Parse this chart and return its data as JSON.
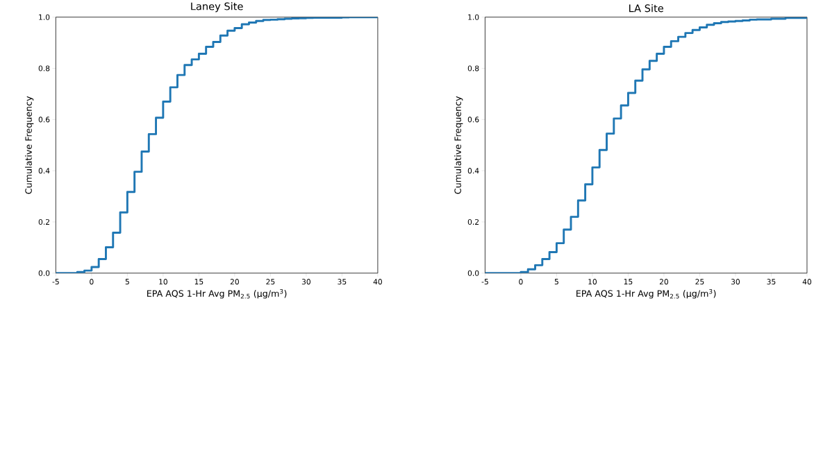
{
  "chart_data": [
    {
      "type": "step",
      "title": "Laney Site",
      "xlabel": "EPA AQS 1-Hr Avg PM$_{2.5}$ (µg/m$^{3}$)",
      "ylabel": "Cumulative Frequency",
      "x": [
        -5,
        -4,
        -3,
        -2,
        -1,
        0,
        1,
        2,
        3,
        4,
        5,
        6,
        7,
        8,
        9,
        10,
        11,
        12,
        13,
        14,
        15,
        16,
        17,
        18,
        19,
        20,
        21,
        22,
        23,
        24,
        25,
        26,
        27,
        28,
        29,
        30,
        31,
        32,
        33,
        34,
        35,
        36,
        37,
        38,
        39,
        40
      ],
      "series": [
        {
          "color": "#1f77b4",
          "values": [
            0,
            0,
            0,
            0.004,
            0.01,
            0.024,
            0.055,
            0.101,
            0.158,
            0.237,
            0.317,
            0.396,
            0.475,
            0.543,
            0.607,
            0.67,
            0.726,
            0.774,
            0.813,
            0.835,
            0.857,
            0.884,
            0.903,
            0.928,
            0.947,
            0.957,
            0.972,
            0.979,
            0.985,
            0.989,
            0.99,
            0.992,
            0.994,
            0.995,
            0.996,
            0.997,
            0.998,
            0.998,
            0.998,
            0.998,
            0.999,
            1,
            1,
            1,
            1,
            1
          ]
        }
      ],
      "xlim": [
        -5,
        40
      ],
      "ylim": [
        0,
        1
      ],
      "xticks": [
        -5,
        0,
        5,
        10,
        15,
        20,
        25,
        30,
        35,
        40
      ],
      "yticks": [
        {
          "value": 0,
          "label": "0.0"
        },
        {
          "value": 0.2,
          "label": "0.2"
        },
        {
          "value": 0.4,
          "label": "0.4"
        },
        {
          "value": 0.6,
          "label": "0.6"
        },
        {
          "value": 0.8,
          "label": "0.8"
        },
        {
          "value": 1,
          "label": "1.0"
        }
      ]
    },
    {
      "type": "step",
      "title": "LA Site",
      "xlabel": "EPA AQS 1-Hr Avg PM$_{2.5}$ (µg/m$^{3}$)",
      "ylabel": "Cumulative Frequency",
      "x": [
        -5,
        -4,
        -3,
        -2,
        -1,
        0,
        1,
        2,
        3,
        4,
        5,
        6,
        7,
        8,
        9,
        10,
        11,
        12,
        13,
        14,
        15,
        16,
        17,
        18,
        19,
        20,
        21,
        22,
        23,
        24,
        25,
        26,
        27,
        28,
        29,
        30,
        31,
        32,
        33,
        34,
        35,
        36,
        37,
        38,
        39,
        40
      ],
      "series": [
        {
          "color": "#1f77b4",
          "values": [
            0,
            0,
            0,
            0,
            0,
            0.004,
            0.015,
            0.031,
            0.055,
            0.082,
            0.117,
            0.17,
            0.22,
            0.284,
            0.347,
            0.413,
            0.481,
            0.545,
            0.604,
            0.655,
            0.704,
            0.752,
            0.796,
            0.829,
            0.857,
            0.884,
            0.906,
            0.923,
            0.938,
            0.95,
            0.96,
            0.97,
            0.976,
            0.981,
            0.983,
            0.985,
            0.987,
            0.99,
            0.991,
            0.991,
            0.994,
            0.994,
            0.997,
            0.997,
            0.997,
            0.997
          ]
        }
      ],
      "xlim": [
        -5,
        40
      ],
      "ylim": [
        0,
        1
      ],
      "xticks": [
        -5,
        0,
        5,
        10,
        15,
        20,
        25,
        30,
        35,
        40
      ],
      "yticks": [
        {
          "value": 0,
          "label": "0.0"
        },
        {
          "value": 0.2,
          "label": "0.2"
        },
        {
          "value": 0.4,
          "label": "0.4"
        },
        {
          "value": 0.6,
          "label": "0.6"
        },
        {
          "value": 0.8,
          "label": "0.8"
        },
        {
          "value": 1,
          "label": "1.0"
        }
      ]
    }
  ]
}
